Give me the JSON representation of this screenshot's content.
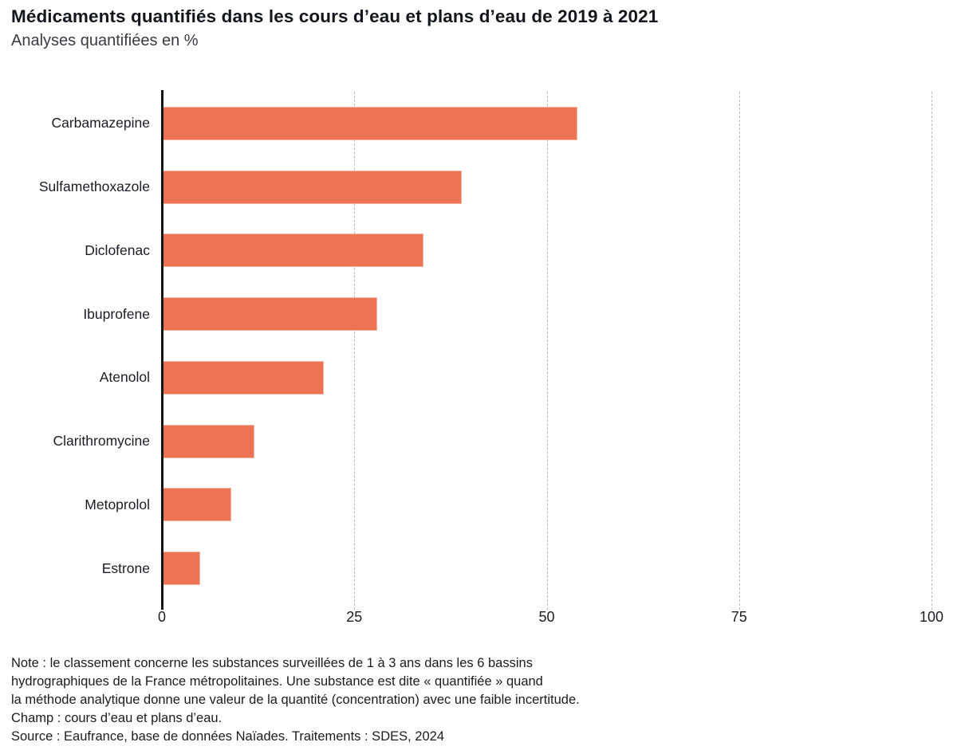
{
  "header": {
    "title": "Médicaments quantifiés dans les cours d’eau et plans d’eau de 2019 à 2021",
    "subtitle": "Analyses quantifiées en %"
  },
  "chart_data": {
    "type": "bar",
    "orientation": "horizontal",
    "title": "Médicaments quantifiés dans les cours d’eau et plans d’eau de 2019 à 2021",
    "subtitle": "Analyses quantifiées en %",
    "categories": [
      "Carbamazepine",
      "Sulfamethoxazole",
      "Diclofenac",
      "Ibuprofene",
      "Atenolol",
      "Clarithromycine",
      "Metoprolol",
      "Estrone"
    ],
    "values": [
      54,
      39,
      34,
      28,
      21,
      12,
      9,
      5
    ],
    "unit": "%",
    "xlabel": "",
    "ylabel": "",
    "xlim": [
      0,
      100
    ],
    "xticks": [
      0,
      25,
      50,
      75,
      100
    ],
    "grid": "vertical-dashed",
    "legend": "none"
  },
  "colors": {
    "bar": "#ED7355",
    "axis": "#141414",
    "gridline": "#b9b9b9",
    "title_text": "#15151e",
    "body_text": "#1c1c1c"
  },
  "footer": {
    "note_lines": [
      "Note : le classement concerne les substances surveillées de 1 à 3 ans dans les 6 bassins",
      "hydrographiques de la France métropolitaines. Une substance est dite « quantifiée » quand",
      "la méthode analytique donne une valeur de la quantité (concentration) avec une faible incertitude.",
      "Champ : cours d’eau et plans d’eau.",
      "Source : Eaufrance, base de données Naïades. Traitements : SDES, 2024"
    ]
  }
}
